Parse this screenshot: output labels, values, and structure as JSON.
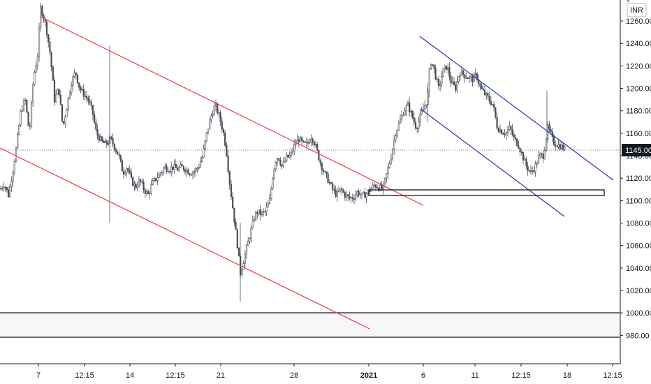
{
  "chart_data": {
    "type": "candlestick",
    "currency_label": "INR",
    "last_price_label": "1145.00",
    "y_ticks": [
      "1260.00",
      "1240.00",
      "1220.00",
      "1200.00",
      "1180.00",
      "1160.00",
      "1140.00",
      "1120.00",
      "1100.00",
      "1080.00",
      "1060.00",
      "1040.00",
      "1020.00",
      "1000.00",
      "980.00"
    ],
    "y_partial_tick": "1",
    "x_ticks": [
      {
        "label": "7",
        "bold": false
      },
      {
        "label": "12:15",
        "bold": false
      },
      {
        "label": "14",
        "bold": false
      },
      {
        "label": "12:15",
        "bold": false
      },
      {
        "label": "21",
        "bold": false
      },
      {
        "label": "28",
        "bold": false
      },
      {
        "label": "2021",
        "bold": true
      },
      {
        "label": "6",
        "bold": false
      },
      {
        "label": "11",
        "bold": false
      },
      {
        "label": "12:15",
        "bold": false
      },
      {
        "label": "18",
        "bold": false
      },
      {
        "label": "12:15",
        "bold": false
      }
    ],
    "price_path": [
      [
        0,
        1110
      ],
      [
        6,
        1115
      ],
      [
        12,
        1105
      ],
      [
        18,
        1125
      ],
      [
        24,
        1150
      ],
      [
        30,
        1180
      ],
      [
        36,
        1190
      ],
      [
        42,
        1160
      ],
      [
        48,
        1210
      ],
      [
        54,
        1230
      ],
      [
        58,
        1272
      ],
      [
        62,
        1265
      ],
      [
        66,
        1255
      ],
      [
        72,
        1230
      ],
      [
        78,
        1190
      ],
      [
        84,
        1200
      ],
      [
        90,
        1165
      ],
      [
        96,
        1185
      ],
      [
        102,
        1205
      ],
      [
        108,
        1215
      ],
      [
        114,
        1200
      ],
      [
        120,
        1195
      ],
      [
        126,
        1190
      ],
      [
        132,
        1180
      ],
      [
        138,
        1160
      ],
      [
        146,
        1152
      ],
      [
        152,
        1150
      ],
      [
        158,
        1155
      ],
      [
        164,
        1148
      ],
      [
        170,
        1140
      ],
      [
        176,
        1125
      ],
      [
        182,
        1130
      ],
      [
        188,
        1118
      ],
      [
        194,
        1112
      ],
      [
        200,
        1118
      ],
      [
        206,
        1110
      ],
      [
        212,
        1105
      ],
      [
        218,
        1115
      ],
      [
        224,
        1120
      ],
      [
        230,
        1125
      ],
      [
        236,
        1130
      ],
      [
        242,
        1128
      ],
      [
        248,
        1130
      ],
      [
        254,
        1128
      ],
      [
        260,
        1130
      ],
      [
        266,
        1128
      ],
      [
        272,
        1125
      ],
      [
        278,
        1126
      ],
      [
        284,
        1130
      ],
      [
        290,
        1140
      ],
      [
        296,
        1160
      ],
      [
        302,
        1175
      ],
      [
        308,
        1185
      ],
      [
        314,
        1175
      ],
      [
        320,
        1160
      ],
      [
        324,
        1145
      ],
      [
        328,
        1120
      ],
      [
        332,
        1100
      ],
      [
        336,
        1080
      ],
      [
        340,
        1060
      ],
      [
        344,
        1035
      ],
      [
        348,
        1045
      ],
      [
        352,
        1055
      ],
      [
        356,
        1065
      ],
      [
        360,
        1075
      ],
      [
        364,
        1085
      ],
      [
        368,
        1090
      ],
      [
        374,
        1088
      ],
      [
        380,
        1090
      ],
      [
        386,
        1100
      ],
      [
        390,
        1120
      ],
      [
        394,
        1135
      ],
      [
        398,
        1140
      ],
      [
        404,
        1130
      ],
      [
        410,
        1138
      ],
      [
        416,
        1140
      ],
      [
        422,
        1150
      ],
      [
        428,
        1155
      ],
      [
        434,
        1150
      ],
      [
        440,
        1150
      ],
      [
        446,
        1158
      ],
      [
        452,
        1148
      ],
      [
        458,
        1135
      ],
      [
        464,
        1125
      ],
      [
        470,
        1118
      ],
      [
        476,
        1110
      ],
      [
        482,
        1105
      ],
      [
        488,
        1110
      ],
      [
        494,
        1105
      ],
      [
        500,
        1102
      ],
      [
        506,
        1103
      ],
      [
        512,
        1108
      ],
      [
        518,
        1104
      ],
      [
        524,
        1106
      ],
      [
        530,
        1110
      ],
      [
        536,
        1114
      ],
      [
        542,
        1112
      ],
      [
        548,
        1110
      ],
      [
        554,
        1125
      ],
      [
        560,
        1140
      ],
      [
        566,
        1160
      ],
      [
        572,
        1170
      ],
      [
        578,
        1180
      ],
      [
        584,
        1185
      ],
      [
        590,
        1175
      ],
      [
        596,
        1165
      ],
      [
        602,
        1175
      ],
      [
        608,
        1185
      ],
      [
        612,
        1190
      ],
      [
        616,
        1225
      ],
      [
        620,
        1220
      ],
      [
        624,
        1210
      ],
      [
        628,
        1200
      ],
      [
        634,
        1215
      ],
      [
        640,
        1220
      ],
      [
        646,
        1205
      ],
      [
        652,
        1200
      ],
      [
        658,
        1215
      ],
      [
        664,
        1212
      ],
      [
        670,
        1210
      ],
      [
        676,
        1208
      ],
      [
        682,
        1212
      ],
      [
        688,
        1200
      ],
      [
        694,
        1195
      ],
      [
        700,
        1190
      ],
      [
        706,
        1185
      ],
      [
        712,
        1165
      ],
      [
        718,
        1162
      ],
      [
        724,
        1160
      ],
      [
        730,
        1165
      ],
      [
        736,
        1155
      ],
      [
        742,
        1150
      ],
      [
        748,
        1140
      ],
      [
        754,
        1130
      ],
      [
        760,
        1125
      ],
      [
        766,
        1130
      ],
      [
        772,
        1140
      ],
      [
        778,
        1140
      ],
      [
        784,
        1165
      ],
      [
        788,
        1160
      ],
      [
        792,
        1152
      ],
      [
        798,
        1150
      ],
      [
        804,
        1148
      ],
      [
        810,
        1145
      ]
    ]
  }
}
